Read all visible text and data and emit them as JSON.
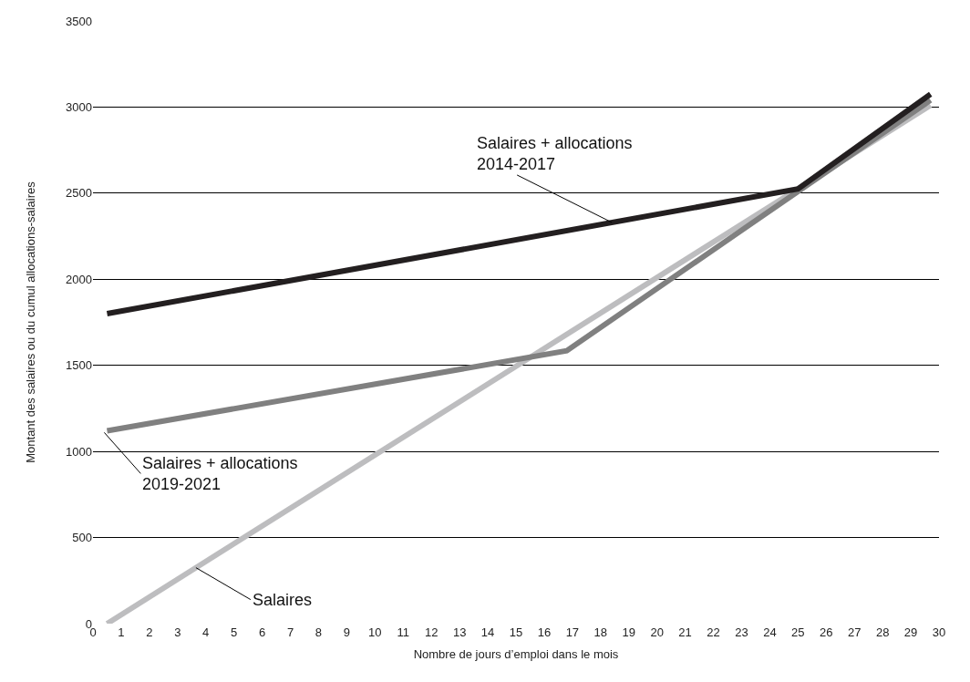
{
  "chart_data": {
    "type": "line",
    "xlabel": "Nombre de jours d’emploi dans le mois",
    "ylabel": "Montant des salaires ou du cumul allocations-salaires",
    "series": [
      {
        "color": "#bdbdbf",
        "x": [
          0.5,
          29.7
        ],
        "values": [
          0,
          3010
        ]
      },
      {
        "color": "#808080",
        "x": [
          0.5,
          16.8,
          25,
          29.7
        ],
        "values": [
          1120,
          1585,
          2510,
          3040
        ]
      },
      {
        "color": "#231f20",
        "x": [
          0.5,
          25,
          29.7
        ],
        "values": [
          1800,
          2525,
          3075
        ]
      }
    ],
    "annotations": [
      {
        "text": "Salaires + allocations\n2014-2017",
        "x": 18.4,
        "y": 2330
      },
      {
        "text": "Salaires + allocations\n2019-2021",
        "x": 0.4,
        "y": 1110
      },
      {
        "text": "Salaires",
        "x": 3.65,
        "y": 325
      }
    ],
    "xlim": [
      0,
      30
    ],
    "xticks": [
      0,
      1,
      2,
      3,
      4,
      5,
      6,
      7,
      8,
      9,
      10,
      11,
      12,
      13,
      14,
      15,
      16,
      17,
      18,
      19,
      20,
      21,
      22,
      23,
      24,
      25,
      26,
      27,
      28,
      29,
      30
    ],
    "ylim": [
      0,
      3500
    ],
    "yticks": [
      0,
      500,
      1000,
      1500,
      2000,
      2500,
      3000,
      3500
    ],
    "grid": "y",
    "marker": "none",
    "line_style": "solid"
  }
}
